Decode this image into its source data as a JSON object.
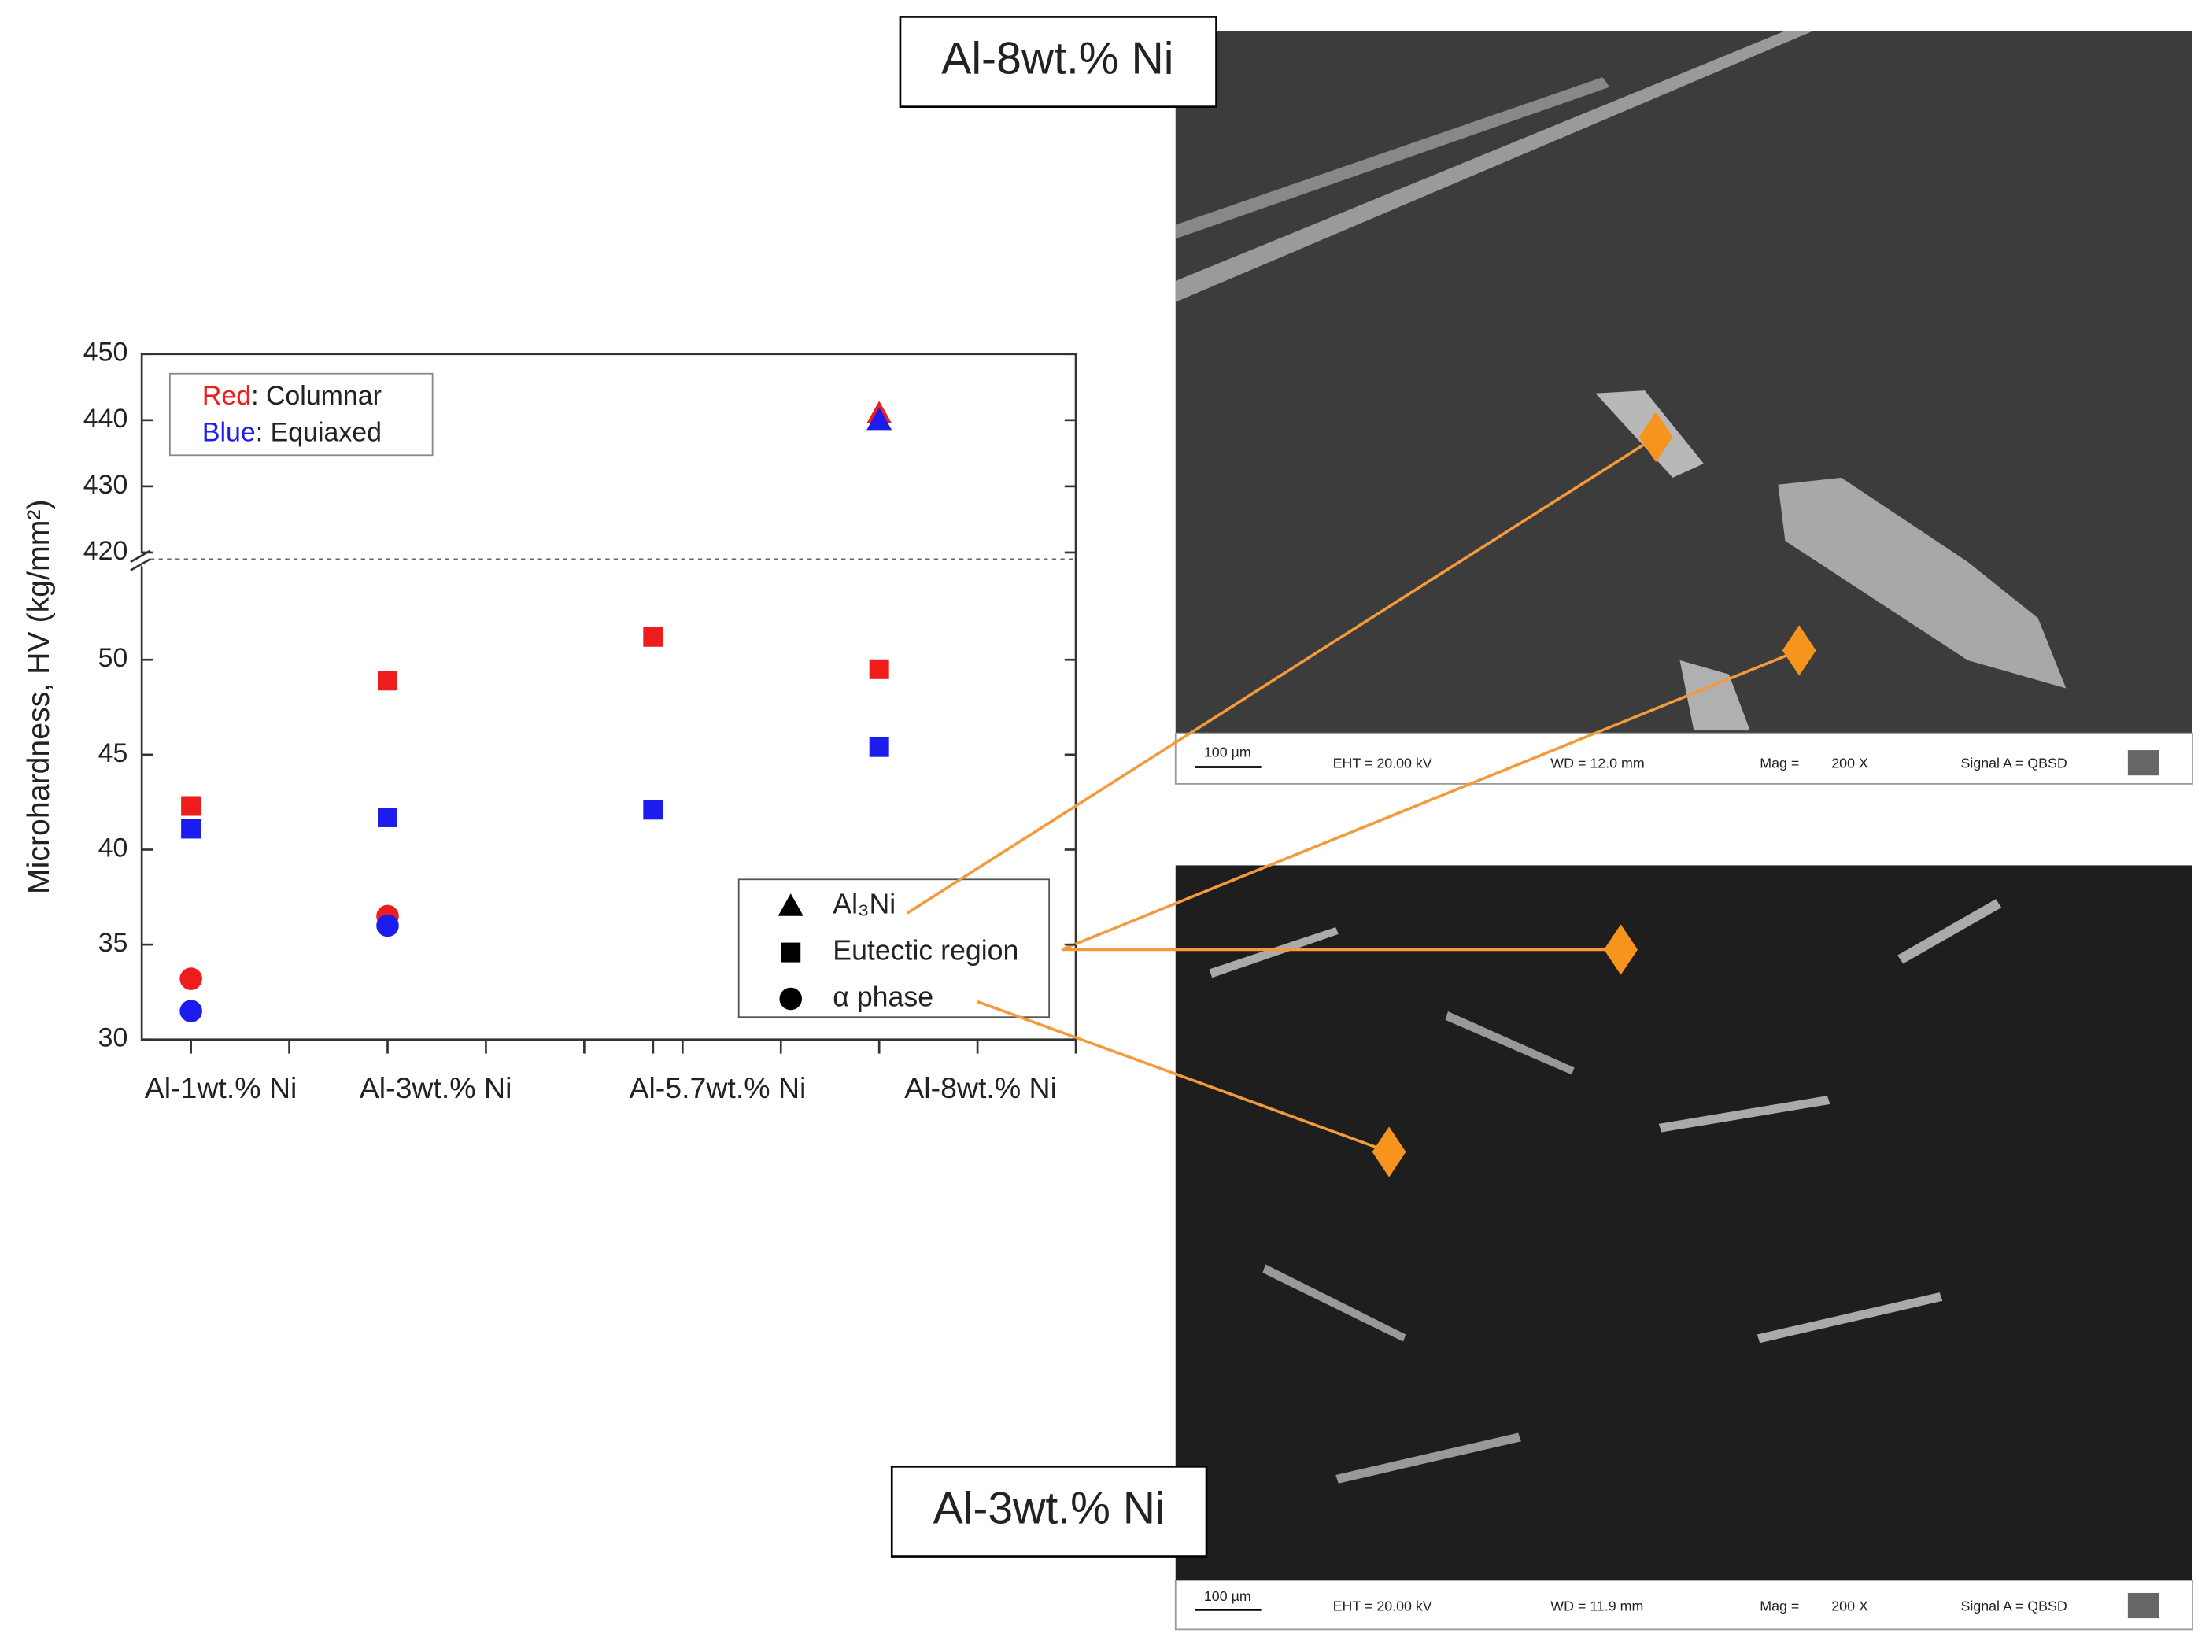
{
  "chart_data": {
    "type": "scatter",
    "y_label": "Microhardness, HV (kg/mm²)",
    "xlim": [
      0.5,
      10
    ],
    "x": [
      1,
      3,
      5.7,
      8
    ],
    "xticks": [
      {
        "value": 1,
        "label": "Al-1wt.% Ni"
      },
      {
        "value": 3,
        "label": "Al-3wt.% Ni"
      },
      {
        "value": 5.7,
        "label": "Al-5.7wt.% Ni"
      },
      {
        "value": 8,
        "label": "Al-8wt.% Ni"
      }
    ],
    "minor_xticks": [
      2,
      4,
      5,
      6,
      7,
      9,
      10
    ],
    "ylim": [
      30,
      55.3
    ],
    "yticks": [
      30,
      35,
      40,
      45,
      50
    ],
    "ylim_upper": [
      419,
      450
    ],
    "yticks_upper": [
      420,
      430,
      440,
      450
    ],
    "axis_break": true,
    "color_legend": [
      {
        "name": "Red",
        "text": ": Columnar",
        "color": "#ee1c1c"
      },
      {
        "name": "Blue",
        "text": ": Equiaxed",
        "color": "#1c1cee"
      }
    ],
    "marker_legend": [
      {
        "marker": "triangle",
        "label": "Al₃Ni"
      },
      {
        "marker": "square",
        "label": "Eutectic region"
      },
      {
        "marker": "circle",
        "label": "α phase"
      }
    ],
    "series": [
      {
        "color": "#ee1c1c",
        "marker": "square",
        "values": [
          42.3,
          48.9,
          51.2,
          49.5
        ]
      },
      {
        "color": "#1c1cee",
        "marker": "square",
        "values": [
          41.1,
          41.7,
          42.1,
          45.4
        ]
      },
      {
        "color": "#ee1c1c",
        "marker": "circle",
        "values": [
          33.2,
          36.5,
          null,
          null
        ]
      },
      {
        "color": "#1c1cee",
        "marker": "circle",
        "values": [
          31.5,
          36.0,
          null,
          null
        ]
      },
      {
        "color": "#ee1c1c",
        "marker": "triangle",
        "values": [
          null,
          null,
          null,
          441
        ]
      },
      {
        "color": "#1c1cee",
        "marker": "triangle",
        "values": [
          null,
          null,
          null,
          440
        ]
      }
    ]
  },
  "images": [
    {
      "label": "Al-8wt.% Ni",
      "scale_bar": "100 µm",
      "eht": "EHT = 20.00 kV",
      "wd": "WD = 12.0 mm",
      "mag_label": "Mag =",
      "mag": "200 X",
      "signal": "Signal A = QBSD"
    },
    {
      "label": "Al-3wt.% Ni",
      "scale_bar": "100 µm",
      "eht": "EHT = 20.00 kV",
      "wd": "WD = 11.9 mm",
      "mag_label": "Mag =",
      "mag": "200 X",
      "signal": "Signal A = QBSD"
    }
  ]
}
